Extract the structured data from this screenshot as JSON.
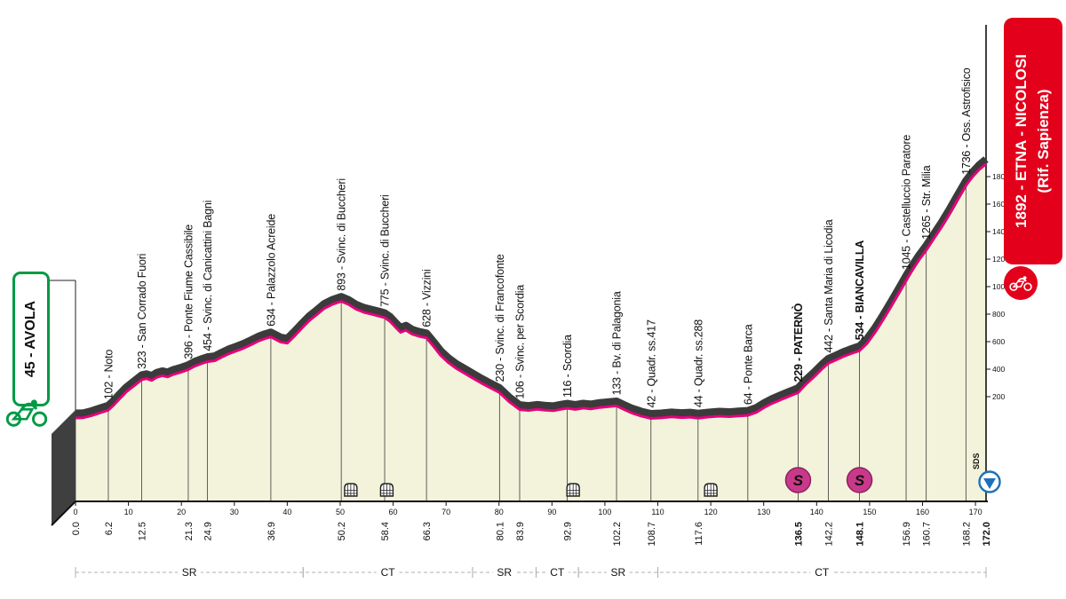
{
  "colors": {
    "giro_pink": "#e5007d",
    "band_dark": "#3b3b3b",
    "profile_fill": "#f2f3da",
    "extrusion_gray": "#3f3f3f",
    "start_green": "#009a44",
    "finish_red": "#e3001b",
    "sprint_magenta": "#c9398a",
    "finish_blue": "#1d71b8",
    "axis_black": "#111111",
    "refline_gray": "#3a3a3a",
    "segment_gray": "#b0b0b0"
  },
  "chart_data": {
    "type": "area",
    "stage": {
      "start_label": "45 - AVOLA",
      "finish_label_line1": "1892 - ETNA - NICOLOSI",
      "finish_label_line2": "(Rif. Sapienza)"
    },
    "x_range_km": [
      0,
      172
    ],
    "elevation_ticks_m": [
      200,
      400,
      600,
      800,
      1000,
      1200,
      1400,
      1600,
      1800
    ],
    "km_axis_ticks": [
      0,
      10,
      20,
      30,
      40,
      50,
      60,
      70,
      80,
      90,
      100,
      110,
      120,
      130,
      140,
      150,
      160,
      170
    ],
    "profile_km_elev": [
      [
        0,
        45
      ],
      [
        1.5,
        47
      ],
      [
        3,
        62
      ],
      [
        4.6,
        82
      ],
      [
        6.2,
        102
      ],
      [
        7.3,
        142
      ],
      [
        8.4,
        188
      ],
      [
        9.6,
        235
      ],
      [
        10.9,
        275
      ],
      [
        12.5,
        323
      ],
      [
        13.4,
        331
      ],
      [
        14.4,
        318
      ],
      [
        15.4,
        342
      ],
      [
        16.4,
        352
      ],
      [
        17.4,
        344
      ],
      [
        18.5,
        362
      ],
      [
        19.8,
        376
      ],
      [
        21.3,
        396
      ],
      [
        22.5,
        421
      ],
      [
        23.7,
        439
      ],
      [
        24.9,
        454
      ],
      [
        26.3,
        461
      ],
      [
        27.6,
        487
      ],
      [
        29,
        512
      ],
      [
        30.4,
        532
      ],
      [
        31.8,
        553
      ],
      [
        33.2,
        578
      ],
      [
        34.6,
        605
      ],
      [
        35.8,
        622
      ],
      [
        36.9,
        634
      ],
      [
        37.8,
        616
      ],
      [
        38.8,
        597
      ],
      [
        40,
        589
      ],
      [
        41.4,
        642
      ],
      [
        42.8,
        700
      ],
      [
        44.2,
        754
      ],
      [
        45.6,
        797
      ],
      [
        47,
        842
      ],
      [
        48.6,
        872
      ],
      [
        50.2,
        893
      ],
      [
        51.6,
        870
      ],
      [
        53,
        836
      ],
      [
        54.5,
        813
      ],
      [
        56,
        799
      ],
      [
        57.2,
        787
      ],
      [
        58.4,
        775
      ],
      [
        59.4,
        748
      ],
      [
        60.4,
        707
      ],
      [
        61.4,
        668
      ],
      [
        62.4,
        683
      ],
      [
        63.6,
        654
      ],
      [
        64.9,
        639
      ],
      [
        66.3,
        628
      ],
      [
        67.6,
        568
      ],
      [
        69,
        499
      ],
      [
        70.4,
        449
      ],
      [
        71.9,
        406
      ],
      [
        73.4,
        372
      ],
      [
        75,
        336
      ],
      [
        76.6,
        300
      ],
      [
        78.2,
        267
      ],
      [
        80.1,
        230
      ],
      [
        81.9,
        163
      ],
      [
        83.9,
        106
      ],
      [
        85.6,
        100
      ],
      [
        87.2,
        108
      ],
      [
        88.8,
        101
      ],
      [
        90.3,
        98
      ],
      [
        91.6,
        108
      ],
      [
        92.9,
        116
      ],
      [
        94.4,
        107
      ],
      [
        95.9,
        117
      ],
      [
        97.4,
        111
      ],
      [
        99,
        121
      ],
      [
        100.6,
        127
      ],
      [
        102.2,
        133
      ],
      [
        103.6,
        107
      ],
      [
        105.1,
        81
      ],
      [
        106.9,
        59
      ],
      [
        108.7,
        42
      ],
      [
        110.6,
        46
      ],
      [
        112.6,
        53
      ],
      [
        114.5,
        48
      ],
      [
        116.1,
        51
      ],
      [
        117.6,
        44
      ],
      [
        119.6,
        52
      ],
      [
        121.6,
        58
      ],
      [
        123.5,
        55
      ],
      [
        125.2,
        60
      ],
      [
        127,
        64
      ],
      [
        128.6,
        86
      ],
      [
        130.1,
        121
      ],
      [
        131.6,
        151
      ],
      [
        133.1,
        176
      ],
      [
        134.7,
        201
      ],
      [
        136.5,
        229
      ],
      [
        138,
        291
      ],
      [
        139.6,
        347
      ],
      [
        141,
        401
      ],
      [
        142.2,
        442
      ],
      [
        143.6,
        466
      ],
      [
        145,
        491
      ],
      [
        146.5,
        513
      ],
      [
        148.1,
        534
      ],
      [
        149.5,
        586
      ],
      [
        151,
        666
      ],
      [
        152.5,
        757
      ],
      [
        154,
        852
      ],
      [
        155.5,
        952
      ],
      [
        156.9,
        1045
      ],
      [
        158,
        1116
      ],
      [
        159.3,
        1192
      ],
      [
        160.7,
        1265
      ],
      [
        162,
        1341
      ],
      [
        163.5,
        1427
      ],
      [
        165,
        1522
      ],
      [
        166.5,
        1623
      ],
      [
        168.2,
        1736
      ],
      [
        169.5,
        1801
      ],
      [
        170.7,
        1851
      ],
      [
        172,
        1892
      ]
    ],
    "waypoints": [
      {
        "km": 0.0,
        "elev": 45,
        "name": "",
        "km_label": "0.0"
      },
      {
        "km": 6.2,
        "elev": 102,
        "name": "102 - Noto",
        "km_label": "6.2"
      },
      {
        "km": 12.5,
        "elev": 323,
        "name": "323 - San Corrado Fuori",
        "km_label": "12.5"
      },
      {
        "km": 21.3,
        "elev": 396,
        "name": "396 - Ponte Fiume Cassibile",
        "km_label": "21.3"
      },
      {
        "km": 24.9,
        "elev": 454,
        "name": "454 - Svinc. di Canicattini Bagni",
        "km_label": "24.9"
      },
      {
        "km": 36.9,
        "elev": 634,
        "name": "634 - Palazzolo Acreide",
        "km_label": "36.9"
      },
      {
        "km": 50.2,
        "elev": 893,
        "name": "893 - Svinc. di Buccheri",
        "km_label": "50.2"
      },
      {
        "km": 58.4,
        "elev": 775,
        "name": "775 - Svinc. di Buccheri",
        "km_label": "58.4"
      },
      {
        "km": 66.3,
        "elev": 628,
        "name": "628 - Vizzini",
        "km_label": "66.3"
      },
      {
        "km": 80.1,
        "elev": 230,
        "name": "230 - Svinc. di Francofonte",
        "km_label": "80.1"
      },
      {
        "km": 83.9,
        "elev": 106,
        "name": "106 - Svinc. per Scordia",
        "km_label": "83.9"
      },
      {
        "km": 92.9,
        "elev": 116,
        "name": "116 - Scordia",
        "km_label": "92.9"
      },
      {
        "km": 102.2,
        "elev": 133,
        "name": "133 - Bv. di Palagonia",
        "km_label": "102.2"
      },
      {
        "km": 108.7,
        "elev": 42,
        "name": "42 - Quadr. ss.417",
        "km_label": "108.7"
      },
      {
        "km": 117.6,
        "elev": 44,
        "name": "44 - Quadr. ss.288",
        "km_label": "117.6"
      },
      {
        "km": 127.0,
        "elev": 64,
        "name": "64 - Ponte Barca",
        "km_label": ""
      },
      {
        "km": 136.5,
        "elev": 229,
        "name": "229 - PATERNÒ",
        "name_bold": true,
        "km_label": "136.5",
        "km_label_bold": true
      },
      {
        "km": 142.2,
        "elev": 442,
        "name": "442 - Santa Maria di Licodia",
        "km_label": "142.2"
      },
      {
        "km": 148.1,
        "elev": 534,
        "name": "534 - BIANCAVILLA",
        "name_bold": true,
        "km_label": "148.1",
        "km_label_bold": true
      },
      {
        "km": 156.9,
        "elev": 1045,
        "name": "1045 - Castelluccio Paratore",
        "km_label": "156.9"
      },
      {
        "km": 160.7,
        "elev": 1265,
        "name": "1265 - Str. Milia",
        "km_label": "160.7"
      },
      {
        "km": 168.2,
        "elev": 1736,
        "name": "1736 - Oss. Astrofisico",
        "km_label": "168.2"
      },
      {
        "km": 172.0,
        "elev": 1892,
        "name": "",
        "km_label": "172.0",
        "km_label_bold": true
      }
    ],
    "road_segments": [
      {
        "from_km": 0,
        "to_km": 43,
        "label": "SR"
      },
      {
        "from_km": 43,
        "to_km": 75,
        "label": "CT"
      },
      {
        "from_km": 75,
        "to_km": 87,
        "label": "SR"
      },
      {
        "from_km": 87,
        "to_km": 95,
        "label": "CT"
      },
      {
        "from_km": 95,
        "to_km": 110,
        "label": "SR"
      },
      {
        "from_km": 110,
        "to_km": 172,
        "label": "CT"
      }
    ],
    "tunnels_km": [
      52,
      58.8,
      94,
      120
    ],
    "sprints_km": [
      136.5,
      148.1
    ],
    "finish_marker_label": "SDS"
  }
}
